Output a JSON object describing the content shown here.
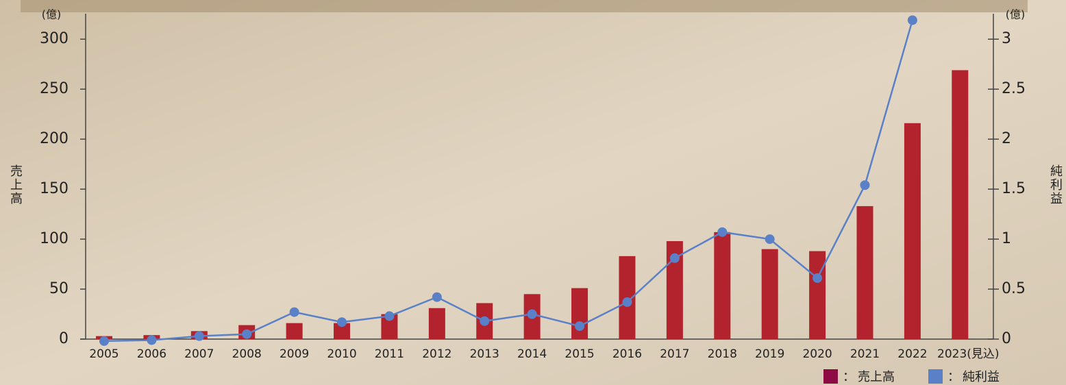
{
  "chart_data": {
    "type": "bar_line",
    "categories": [
      "2005",
      "2006",
      "2007",
      "2008",
      "2009",
      "2010",
      "2011",
      "2012",
      "2013",
      "2014",
      "2015",
      "2016",
      "2017",
      "2018",
      "2019",
      "2020",
      "2021",
      "2022",
      "2023(見込)"
    ],
    "series": [
      {
        "name": "売上高",
        "type": "bar",
        "color": "#b3232d",
        "legend_color": "#8e0a45",
        "values": [
          3,
          4,
          8,
          14,
          16,
          16,
          25,
          31,
          36,
          45,
          51,
          83,
          98,
          107,
          90,
          88,
          133,
          216,
          269
        ]
      },
      {
        "name": "純利益",
        "type": "line",
        "axis": "y2",
        "color": "#5a80c8",
        "legend_color": "#5a80c8",
        "values": [
          -0.02,
          -0.01,
          0.03,
          0.05,
          0.27,
          0.17,
          0.23,
          0.42,
          0.18,
          0.25,
          0.13,
          0.37,
          0.81,
          1.07,
          1.0,
          0.61,
          1.54,
          3.19,
          null
        ]
      }
    ],
    "ylabel": "売上高",
    "y2label": "純利益",
    "yunit": "(億)",
    "y2unit": "(億)",
    "legend_separator": "：",
    "ylim": [
      0,
      320
    ],
    "yticks": [
      0,
      50,
      100,
      150,
      200,
      250,
      300
    ],
    "y2lim": [
      0,
      3.2
    ],
    "y2ticks": [
      0,
      0.5,
      1,
      1.5,
      2,
      2.5,
      3
    ]
  }
}
